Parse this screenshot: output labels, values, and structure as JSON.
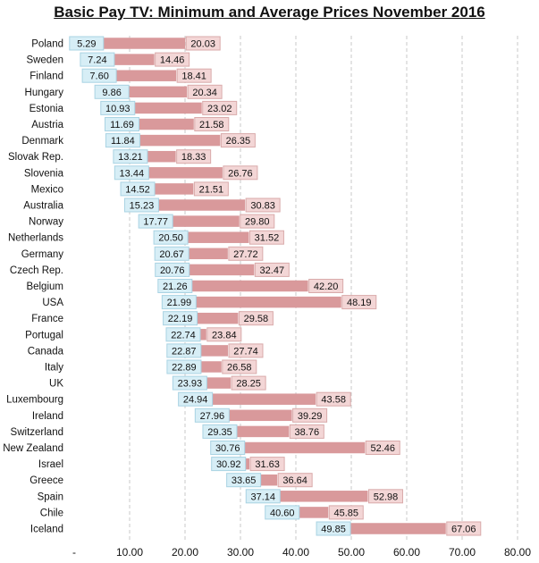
{
  "colors": {
    "bar": "#d9999b",
    "min_label_bg": "#d7eef6",
    "min_label_border": "#a9d3e3",
    "avg_label_bg": "#f3d6d6",
    "avg_label_border": "#d9aaaa",
    "grid": "#c8c8c8",
    "text": "#111111"
  },
  "chart_data": {
    "type": "bar",
    "orientation": "horizontal-floating-range",
    "title": "Basic Pay TV: Minimum and Average Prices November 2016",
    "xlabel": "",
    "ylabel": "",
    "xlim": [
      0,
      80
    ],
    "xticks": [
      "-",
      "10.00",
      "20.00",
      "30.00",
      "40.00",
      "50.00",
      "60.00",
      "70.00",
      "80.00"
    ],
    "grid": "vertical-dashed",
    "categories": [
      "Poland",
      "Sweden",
      "Finland",
      "Hungary",
      "Estonia",
      "Austria",
      "Denmark",
      "Slovak Rep.",
      "Slovenia",
      "Mexico",
      "Australia",
      "Norway",
      "Netherlands",
      "Germany",
      "Czech Rep.",
      "Belgium",
      "USA",
      "France",
      "Portugal",
      "Canada",
      "Italy",
      "UK",
      "Luxembourg",
      "Ireland",
      "Switzerland",
      "New Zealand",
      "Israel",
      "Greece",
      "Spain",
      "Chile",
      "Iceland"
    ],
    "series": [
      {
        "values": [
          5.29,
          7.24,
          7.6,
          9.86,
          10.93,
          11.69,
          11.84,
          13.21,
          13.44,
          14.52,
          15.23,
          17.77,
          20.5,
          20.67,
          20.76,
          21.26,
          21.99,
          22.19,
          22.74,
          22.87,
          22.89,
          23.93,
          24.94,
          27.96,
          29.35,
          30.76,
          30.92,
          33.65,
          37.14,
          40.6,
          49.85
        ],
        "labels": [
          "5.29",
          "7.24",
          "7.60",
          "9.86",
          "10.93",
          "11.69",
          "11.84",
          "13.21",
          "13.44",
          "14.52",
          "15.23",
          "17.77",
          "20.50",
          "20.67",
          "20.76",
          "21.26",
          "21.99",
          "22.19",
          "22.74",
          "22.87",
          "22.89",
          "23.93",
          "24.94",
          "27.96",
          "29.35",
          "30.76",
          "30.92",
          "33.65",
          "37.14",
          "40.60",
          "49.85"
        ]
      },
      {
        "values": [
          20.03,
          14.46,
          18.41,
          20.34,
          23.02,
          21.58,
          26.35,
          18.33,
          26.76,
          21.51,
          30.83,
          29.8,
          31.52,
          27.72,
          32.47,
          42.2,
          48.19,
          29.58,
          23.84,
          27.74,
          26.58,
          28.25,
          43.58,
          39.29,
          38.76,
          52.46,
          31.63,
          36.64,
          52.98,
          45.85,
          67.06
        ],
        "labels": [
          "20.03",
          "14.46",
          "18.41",
          "20.34",
          "23.02",
          "21.58",
          "26.35",
          "18.33",
          "26.76",
          "21.51",
          "30.83",
          "29.80",
          "31.52",
          "27.72",
          "32.47",
          "42.20",
          "48.19",
          "29.58",
          "23.84",
          "27.74",
          "26.58",
          "28.25",
          "43.58",
          "39.29",
          "38.76",
          "52.46",
          "31.63",
          "36.64",
          "52.98",
          "45.85",
          "67.06"
        ]
      }
    ]
  }
}
